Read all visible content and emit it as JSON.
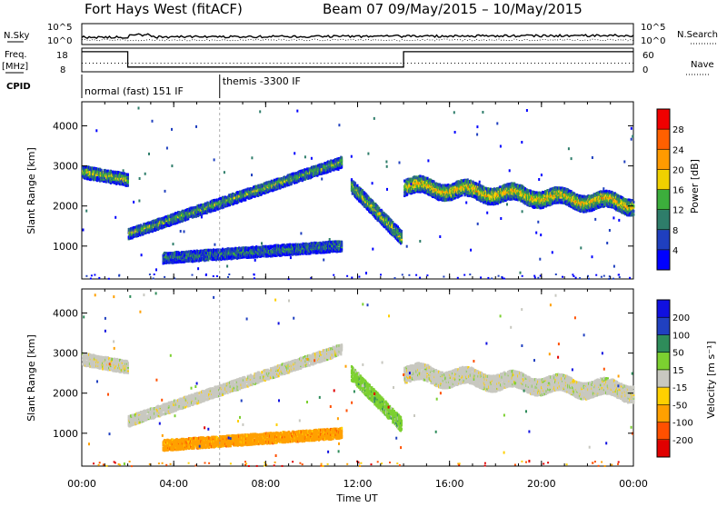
{
  "header": {
    "title": "Fort Hays West (fitACF)",
    "subtitle": "Beam 07  09/May/2015 – 10/May/2015"
  },
  "noise_panel": {
    "left_label": "N.Sky",
    "left_ticks": [
      "10^5",
      "10^0"
    ],
    "right_label": "N.Search",
    "right_ticks": [
      "10^5",
      "10^0"
    ],
    "sky_level": 1.3,
    "search_level": 1.0
  },
  "freq_panel": {
    "left_label_line1": "Freq.",
    "left_label_line2": "[MHz]",
    "left_ticks": [
      18,
      8
    ],
    "left_range": [
      8,
      18
    ],
    "right_label": "Nave",
    "right_ticks": [
      60,
      0
    ],
    "right_range": [
      0,
      60
    ],
    "freq_segments": [
      {
        "start": 0.0,
        "end": 2.0,
        "value": 16.5
      },
      {
        "start": 2.0,
        "end": 14.0,
        "value": 10.0
      },
      {
        "start": 14.0,
        "end": 24.0,
        "value": 16.5
      }
    ],
    "nave_segments": [
      {
        "start": 0.0,
        "end": 2.0,
        "value": 22
      },
      {
        "start": 2.0,
        "end": 14.0,
        "value": 22
      },
      {
        "start": 14.0,
        "end": 24.0,
        "value": 22
      }
    ]
  },
  "cpid_panel": {
    "label": "CPID",
    "modes": [
      {
        "start": 0.0,
        "end": 6.0,
        "label": "normal (fast) 151 IF"
      },
      {
        "start": 6.0,
        "end": 24.0,
        "label": "themis -3300 IF"
      }
    ]
  },
  "time_axis": {
    "label": "Time UT",
    "ticks": [
      {
        "h": 0,
        "label": "00:00"
      },
      {
        "h": 4,
        "label": "04:00"
      },
      {
        "h": 8,
        "label": "08:00"
      },
      {
        "h": 12,
        "label": "12:00"
      },
      {
        "h": 16,
        "label": "16:00"
      },
      {
        "h": 20,
        "label": "20:00"
      },
      {
        "h": 24,
        "label": "00:00"
      }
    ]
  },
  "range_axis": {
    "label": "Slant Range [km]",
    "ticks": [
      1000,
      2000,
      3000,
      4000
    ],
    "range": [
      180,
      4600
    ]
  },
  "power_colorbar": {
    "label": "Power [dB]",
    "ticks": [
      "4",
      "8",
      "12",
      "16",
      "20",
      "24",
      "28"
    ],
    "colors": [
      "#0000ff",
      "#1f3fbf",
      "#2e7d6a",
      "#3cae3c",
      "#f0d000",
      "#ff9a00",
      "#ff6000",
      "#f00000"
    ]
  },
  "velocity_colorbar": {
    "label": "Velocity [m s⁻¹]",
    "ticks": [
      "-200",
      "-100",
      "-50",
      "-15",
      "15",
      "50",
      "100",
      "200"
    ],
    "colors": [
      "#e00000",
      "#ff5000",
      "#ffa000",
      "#ffd000",
      "#c8c8c0",
      "#7cd030",
      "#2e8c5a",
      "#2040c0",
      "#1010e0"
    ]
  },
  "chart_data": {
    "type": "heatmap",
    "x_units": "hours UT",
    "y_units": "km",
    "xlim": [
      0,
      24
    ],
    "ylim": [
      180,
      4600
    ],
    "echo_bands": [
      {
        "t_start": 0.0,
        "t_end": 2.0,
        "r_start": 2850,
        "r_end": 2650,
        "width": 300,
        "power": "12-20",
        "velocity": "-15 to 15"
      },
      {
        "t_start": 2.0,
        "t_end": 11.3,
        "r_start": 1300,
        "r_end": 3100,
        "width": 250,
        "power": "8-20",
        "velocity": "-15 to 15"
      },
      {
        "t_start": 3.5,
        "t_end": 11.3,
        "r_start": 700,
        "r_end": 1000,
        "width": 250,
        "power": "4-16",
        "velocity": "-100 to -50"
      },
      {
        "t_start": 11.7,
        "t_end": 13.9,
        "r_start": 2500,
        "r_end": 1200,
        "width": 350,
        "power": "8-24",
        "velocity": "15 to 50"
      },
      {
        "t_start": 14.0,
        "t_end": 24.0,
        "r_start": 2500,
        "r_end": 2050,
        "width": 400,
        "power": "12-28",
        "velocity": "-15 to 15"
      }
    ]
  }
}
